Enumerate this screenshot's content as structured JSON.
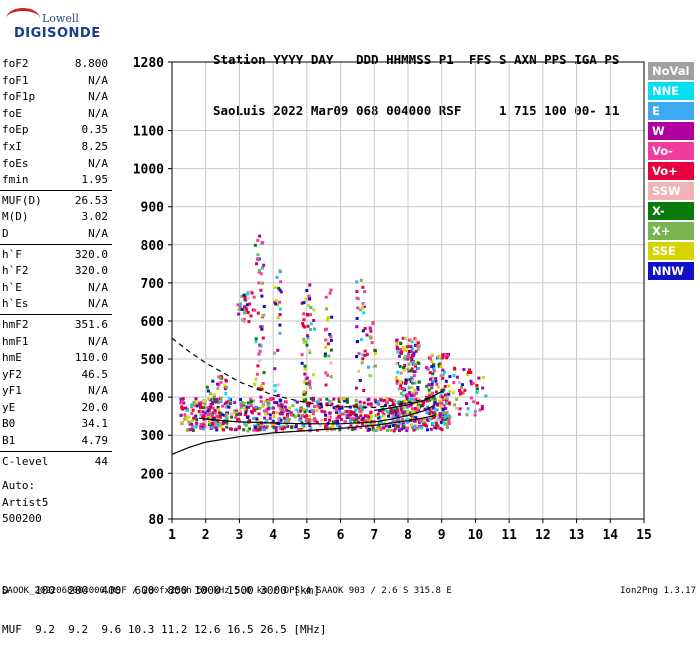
{
  "logo": {
    "line1": "Lowell",
    "line2": "DIGISONDE"
  },
  "header": {
    "line1": "Station YYYY DAY   DDD HHMMSS P1  FFS S AXN PPS IGA PS",
    "line2": "SaoLuis 2022 Mar09 068 004000 RSF     1 715 100 00- 11"
  },
  "params": [
    [
      {
        "label": "foF2",
        "value": "8.800"
      },
      {
        "label": "foF1",
        "value": "N/A"
      },
      {
        "label": "foF1p",
        "value": "N/A"
      },
      {
        "label": "foE",
        "value": "N/A"
      },
      {
        "label": "foEp",
        "value": "0.35"
      },
      {
        "label": "fxI",
        "value": "8.25"
      },
      {
        "label": "foEs",
        "value": "N/A"
      },
      {
        "label": "fmin",
        "value": "1.95"
      }
    ],
    [
      {
        "label": "MUF(D)",
        "value": "26.53"
      },
      {
        "label": "M(D)",
        "value": "3.02"
      },
      {
        "label": "D",
        "value": "N/A"
      }
    ],
    [
      {
        "label": "h`F",
        "value": "320.0"
      },
      {
        "label": "h`F2",
        "value": "320.0"
      },
      {
        "label": "h`E",
        "value": "N/A"
      },
      {
        "label": "h`Es",
        "value": "N/A"
      }
    ],
    [
      {
        "label": "hmF2",
        "value": "351.6"
      },
      {
        "label": "hmF1",
        "value": "N/A"
      },
      {
        "label": "hmE",
        "value": "110.0"
      },
      {
        "label": "yF2",
        "value": "46.5"
      },
      {
        "label": "yF1",
        "value": "N/A"
      },
      {
        "label": "yE",
        "value": "20.0"
      },
      {
        "label": "B0",
        "value": "34.1"
      },
      {
        "label": "B1",
        "value": "4.79"
      }
    ],
    [
      {
        "label": "C-level",
        "value": "44"
      }
    ]
  ],
  "auto": {
    "line1": "Auto:",
    "line2": "Artist5",
    "line3": "500200"
  },
  "legend": [
    {
      "label": "NoVal",
      "color": "#a0a0a0"
    },
    {
      "label": "NNE",
      "color": "#00e0f0"
    },
    {
      "label": "E",
      "color": "#3ea8f0"
    },
    {
      "label": "W",
      "color": "#b000a0"
    },
    {
      "label": "Vo-",
      "color": "#f03c9c"
    },
    {
      "label": "Vo+",
      "color": "#e8003c"
    },
    {
      "label": "SSW",
      "color": "#f0b4b4"
    },
    {
      "label": "X-",
      "color": "#0a7a0a"
    },
    {
      "label": "X+",
      "color": "#78b450"
    },
    {
      "label": "SSE",
      "color": "#d4d400"
    },
    {
      "label": "NNW",
      "color": "#1010c8"
    }
  ],
  "footer": {
    "line1": "D    100  200  400  600  800 1000 1500 3000 [km]",
    "line2": "MUF  9.2  9.2  9.6 10.3 11.2 12.6 16.5 26.5 [MHz]",
    "line3": "SAOOK_2022068004000.RSF / 280fx256h 50 kHz 5.0 km / DPS-4 SAAOK 903 / 2.6 S 315.8 E",
    "version": "Ion2Png 1.3.17"
  },
  "chart_data": {
    "type": "scatter",
    "title": "",
    "xlabel": "",
    "ylabel": "",
    "xlim": [
      1,
      15
    ],
    "ylim": [
      80,
      1280
    ],
    "xticks": [
      "1",
      "2",
      "3",
      "4",
      "5",
      "6",
      "7",
      "8",
      "9",
      "10",
      "11",
      "12",
      "13",
      "14",
      "15"
    ],
    "yticks": [
      {
        "v": 80,
        "label": "80"
      },
      {
        "v": 200,
        "label": "200"
      },
      {
        "v": 300,
        "label": "300"
      },
      {
        "v": 400,
        "label": "400"
      },
      {
        "v": 500,
        "label": "500"
      },
      {
        "v": 600,
        "label": "600"
      },
      {
        "v": 700,
        "label": "700"
      },
      {
        "v": 800,
        "label": "800"
      },
      {
        "v": 900,
        "label": "900"
      },
      {
        "v": 1000,
        "label": "1000"
      },
      {
        "v": 1100,
        "label": "1100"
      },
      {
        "v": 1280,
        "label": "1280"
      }
    ],
    "grid": true,
    "legend_position": "right",
    "profile_curve": [
      [
        1.0,
        250
      ],
      [
        1.5,
        268
      ],
      [
        2.0,
        282
      ],
      [
        3.0,
        296
      ],
      [
        4.0,
        306
      ],
      [
        5.0,
        312
      ],
      [
        6.0,
        318
      ],
      [
        7.0,
        326
      ],
      [
        8.0,
        338
      ],
      [
        8.5,
        346
      ],
      [
        8.8,
        352
      ]
    ],
    "traces": [
      {
        "x": [
          1.0,
          1.5,
          2.0,
          3.0,
          4.0,
          5.0,
          6.0,
          7.0,
          7.5,
          8.0,
          8.5,
          8.8
        ],
        "y": [
          555,
          520,
          490,
          440,
          405,
          385,
          375,
          373,
          378,
          385,
          395,
          405
        ],
        "style": "dashed"
      },
      {
        "x": [
          1.8,
          2.5,
          3.0,
          4.0,
          5.0,
          6.0,
          7.0,
          7.5,
          8.0,
          8.5,
          8.8
        ],
        "y": [
          345,
          338,
          335,
          332,
          330,
          330,
          335,
          342,
          352,
          365,
          380
        ],
        "style": "solid"
      },
      {
        "x": [
          7.0,
          7.5,
          8.0,
          8.5,
          8.8,
          9.0
        ],
        "y": [
          365,
          372,
          380,
          392,
          405,
          415
        ],
        "style": "solid"
      }
    ],
    "echo_clusters": [
      {
        "x0": 1.2,
        "x1": 9.2,
        "y0": 315,
        "y1": 400,
        "density": 0.9
      },
      {
        "x0": 2.0,
        "x1": 2.6,
        "y0": 330,
        "y1": 460,
        "density": 0.5
      },
      {
        "x0": 2.9,
        "x1": 3.4,
        "y0": 600,
        "y1": 680,
        "density": 0.6
      },
      {
        "x0": 3.4,
        "x1": 3.7,
        "y0": 400,
        "y1": 850,
        "density": 0.25
      },
      {
        "x0": 4.0,
        "x1": 4.2,
        "y0": 400,
        "y1": 750,
        "density": 0.25
      },
      {
        "x0": 4.8,
        "x1": 5.2,
        "y0": 400,
        "y1": 700,
        "density": 0.3
      },
      {
        "x0": 5.5,
        "x1": 5.7,
        "y0": 420,
        "y1": 700,
        "density": 0.3
      },
      {
        "x0": 6.4,
        "x1": 6.7,
        "y0": 420,
        "y1": 720,
        "density": 0.25
      },
      {
        "x0": 6.7,
        "x1": 7.0,
        "y0": 460,
        "y1": 600,
        "density": 0.3
      },
      {
        "x0": 7.6,
        "x1": 8.3,
        "y0": 340,
        "y1": 560,
        "density": 0.7
      },
      {
        "x0": 8.5,
        "x1": 9.2,
        "y0": 340,
        "y1": 520,
        "density": 0.6
      },
      {
        "x0": 9.3,
        "x1": 10.3,
        "y0": 350,
        "y1": 480,
        "density": 0.25
      }
    ]
  }
}
